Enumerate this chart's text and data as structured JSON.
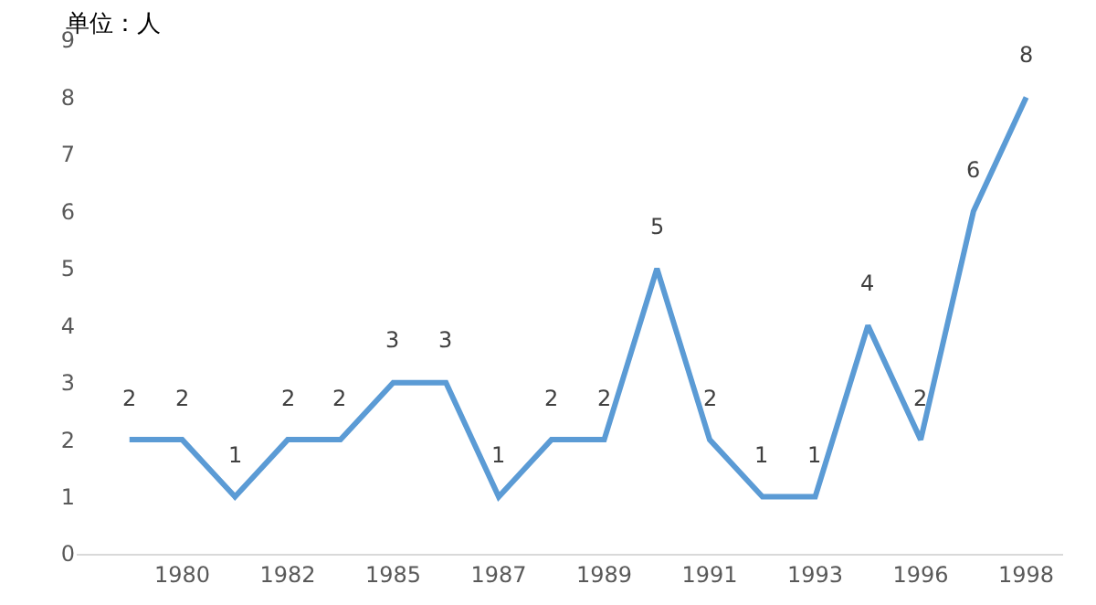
{
  "chart_data": {
    "type": "line",
    "annotations": [
      "单位：人"
    ],
    "categories": [
      null,
      "1980",
      null,
      "1982",
      null,
      "1985",
      null,
      "1987",
      null,
      "1989",
      null,
      "1991",
      null,
      "1993",
      null,
      "1996",
      null,
      "1998"
    ],
    "series": [
      {
        "color": "#5b9bd5",
        "values": [
          2,
          2,
          1,
          2,
          2,
          3,
          3,
          1,
          2,
          2,
          5,
          2,
          1,
          1,
          4,
          2,
          6,
          8
        ]
      }
    ],
    "ylim": [
      0,
      9
    ],
    "yticks": [
      0,
      1,
      2,
      3,
      4,
      5,
      6,
      7,
      8,
      9
    ],
    "grid": false,
    "marker": "none",
    "line_style": "solid",
    "data_labels": true
  }
}
